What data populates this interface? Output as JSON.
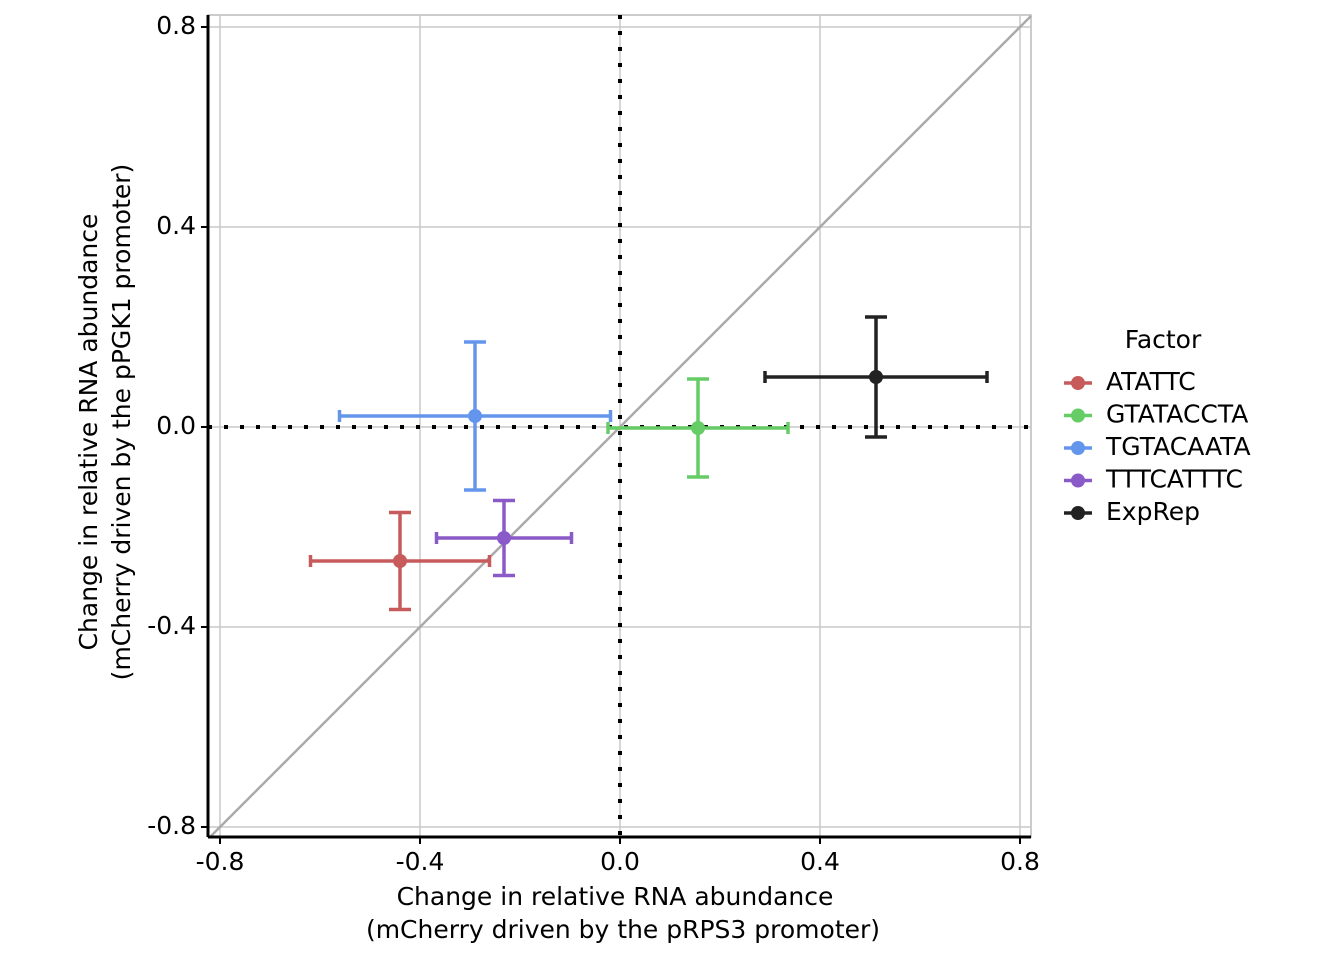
{
  "chart_data": {
    "type": "scatter",
    "xlabel": [
      "Change in relative RNA abundance",
      "(mCherry driven by the pRPS3 promoter)"
    ],
    "ylabel": [
      "Change in relative RNA abundance",
      "(mCherry driven by the pPGK1 promoter)"
    ],
    "legend_title": "Factor",
    "legend": "right",
    "grid": true,
    "hline": 0,
    "vline": 0,
    "identity_line": true,
    "xlim": [
      -0.824,
      0.822
    ],
    "ylim": [
      -0.82,
      0.824
    ],
    "xticks": [
      -0.8,
      -0.4,
      {
        "value": 0,
        "label": "0.0"
      },
      0.4,
      0.8
    ],
    "yticks": [
      -0.8,
      -0.4,
      {
        "value": 0,
        "label": "0.0"
      },
      0.4,
      0.8
    ],
    "series": [
      {
        "name": "ATATTC",
        "color": "#c75b5b",
        "x": [
          -0.44
        ],
        "values": [
          -0.268
        ],
        "xerr": [
          0.179
        ],
        "yerr": [
          0.097
        ]
      },
      {
        "name": "GTATACCTA",
        "color": "#66cc66",
        "x": [
          0.156
        ],
        "values": [
          -0.002
        ],
        "xerr": [
          0.18
        ],
        "yerr": [
          0.098
        ]
      },
      {
        "name": "TGTACAATA",
        "color": "#6495ed",
        "x": [
          -0.29
        ],
        "values": [
          0.022
        ],
        "xerr": [
          0.271
        ],
        "yerr": [
          0.148
        ]
      },
      {
        "name": "TTTCATTTC",
        "color": "#8a5ac8",
        "x": [
          -0.232
        ],
        "values": [
          -0.222
        ],
        "xerr": [
          0.135
        ],
        "yerr": [
          0.075
        ]
      },
      {
        "name": "ExpRep",
        "color": "#222222",
        "x": [
          0.512
        ],
        "values": [
          0.1
        ],
        "xerr": [
          0.222
        ],
        "yerr": [
          0.12
        ]
      }
    ]
  }
}
